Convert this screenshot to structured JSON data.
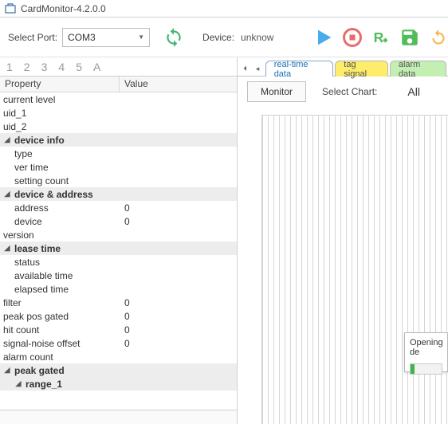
{
  "window": {
    "title": "CardMonitor-4.2.0.0"
  },
  "toolbar": {
    "port_label": "Select Port:",
    "port_value": "COM3",
    "device_label": "Device:",
    "device_value": "unknow",
    "icons": {
      "refresh": "refresh-icon",
      "play": "play-icon",
      "stop": "stop-icon",
      "rx": "rx-icon",
      "save": "save-icon",
      "reload": "reload-icon"
    },
    "colors": {
      "refresh": "#2eaf68",
      "play": "#35a4e8",
      "stop": "#e85a5a",
      "rx": "#3fb548",
      "save": "#3fb548",
      "reload": "#f4b23e"
    }
  },
  "numtabs": [
    "1",
    "2",
    "3",
    "4",
    "5",
    "A"
  ],
  "grid": {
    "headers": {
      "property": "Property",
      "value": "Value"
    },
    "rows": [
      {
        "type": "plain",
        "label": "current level",
        "value": ""
      },
      {
        "type": "plain",
        "label": "uid_1",
        "value": ""
      },
      {
        "type": "plain",
        "label": "uid_2",
        "value": ""
      },
      {
        "type": "group",
        "label": "device info"
      },
      {
        "type": "child",
        "indent": 1,
        "label": "type",
        "value": ""
      },
      {
        "type": "child",
        "indent": 1,
        "label": "ver time",
        "value": ""
      },
      {
        "type": "child",
        "indent": 1,
        "label": "setting count",
        "value": ""
      },
      {
        "type": "group",
        "label": "device & address"
      },
      {
        "type": "child",
        "indent": 1,
        "label": "address",
        "value": "0"
      },
      {
        "type": "child",
        "indent": 1,
        "label": "device",
        "value": "0"
      },
      {
        "type": "plain",
        "label": "version",
        "value": ""
      },
      {
        "type": "group",
        "label": "lease time"
      },
      {
        "type": "child",
        "indent": 1,
        "label": "status",
        "value": ""
      },
      {
        "type": "child",
        "indent": 1,
        "label": "available time",
        "value": ""
      },
      {
        "type": "child",
        "indent": 1,
        "label": "elapsed time",
        "value": ""
      },
      {
        "type": "plain",
        "label": "filter",
        "value": "0"
      },
      {
        "type": "plain",
        "label": "peak pos gated",
        "value": "0"
      },
      {
        "type": "plain",
        "label": "hit count",
        "value": "0"
      },
      {
        "type": "plain",
        "label": "signal-noise offset",
        "value": "0"
      },
      {
        "type": "plain",
        "label": "alarm count",
        "value": ""
      },
      {
        "type": "group",
        "label": "peak gated"
      },
      {
        "type": "subgroup",
        "indent": 1,
        "label": "range_1"
      }
    ]
  },
  "tabs": {
    "items": [
      {
        "label": "real-time data",
        "style": "active"
      },
      {
        "label": "tag signal",
        "style": "yellow"
      },
      {
        "label": "alarm data",
        "style": "green"
      }
    ]
  },
  "right": {
    "monitor_btn": "Monitor",
    "select_chart_label": "Select Chart:",
    "select_chart_value": "All",
    "dialog": {
      "text": "Opening de",
      "progress_pct": 14
    }
  }
}
